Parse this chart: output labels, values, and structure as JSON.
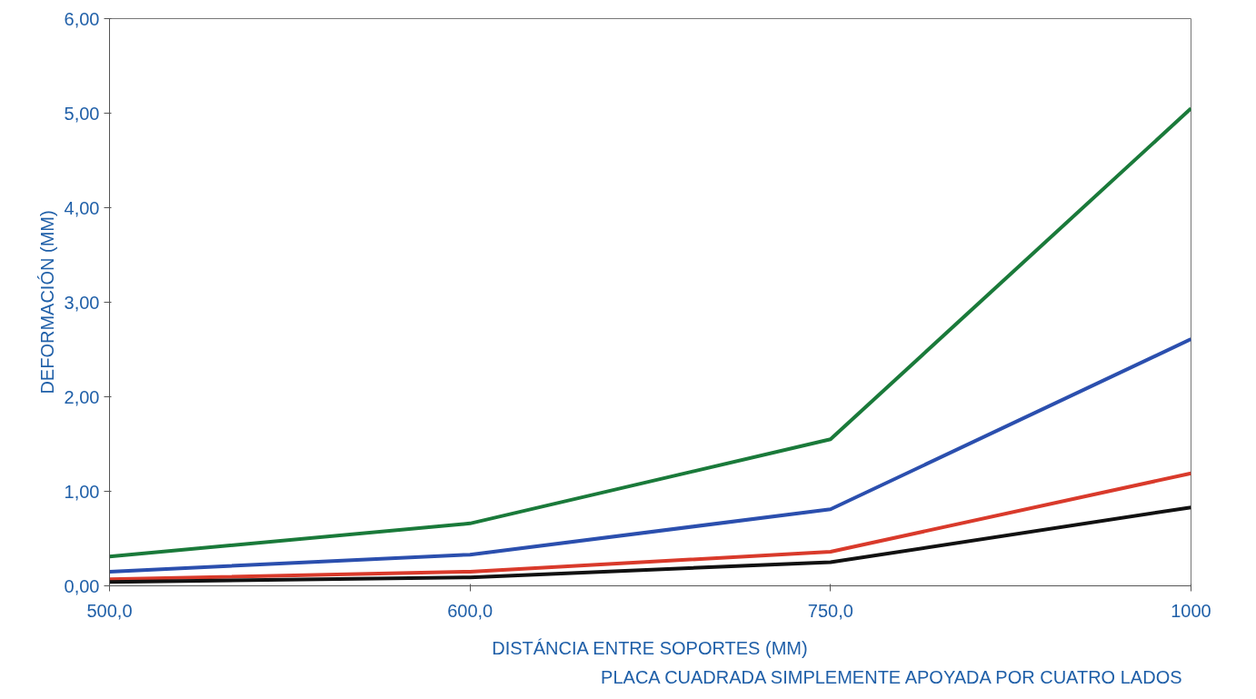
{
  "chart_data": {
    "type": "line",
    "categories": [
      "500,0",
      "600,0",
      "750,0",
      "1000"
    ],
    "xlabel": "DISTÁNCIA ENTRE SOPORTES (MM)",
    "ylabel": "DEFORMACIÓN (MM)",
    "annotations": [
      "PLACA CUADRADA SIMPLEMENTE APOYADA POR  CUATRO LADOS"
    ],
    "ylim": [
      0,
      6
    ],
    "yticks": [
      {
        "value": 0,
        "label": "0,00"
      },
      {
        "value": 1,
        "label": "1,00"
      },
      {
        "value": 2,
        "label": "2,00"
      },
      {
        "value": 3,
        "label": "3,00"
      },
      {
        "value": 4,
        "label": "4,00"
      },
      {
        "value": 5,
        "label": "5,00"
      },
      {
        "value": 6,
        "label": "6,00"
      }
    ],
    "grid": false,
    "marker": "none",
    "line_style": "solid",
    "series": [
      {
        "color": "#1a7a3a",
        "values": [
          0.31,
          0.66,
          1.55,
          5.05
        ]
      },
      {
        "color": "#2b4fae",
        "values": [
          0.15,
          0.33,
          0.81,
          2.61
        ]
      },
      {
        "color": "#d93a2b",
        "values": [
          0.07,
          0.15,
          0.36,
          1.19
        ]
      },
      {
        "color": "#111111",
        "values": [
          0.04,
          0.09,
          0.25,
          0.83
        ]
      }
    ]
  }
}
